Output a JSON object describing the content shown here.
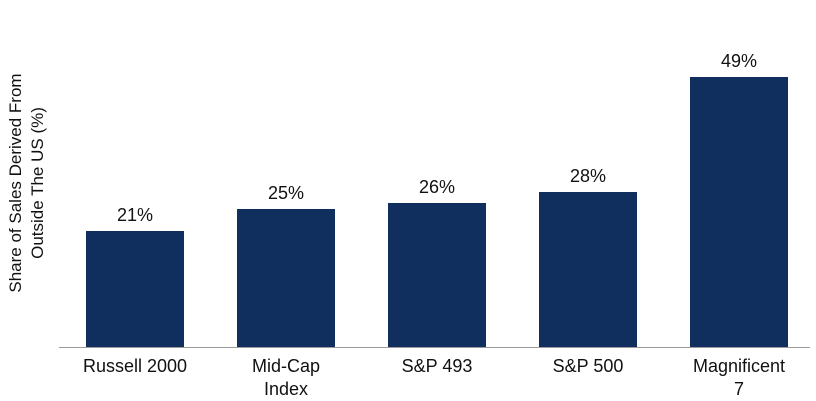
{
  "chart_data": {
    "type": "bar",
    "title": "",
    "categories": [
      "Russell 2000",
      "Mid-Cap Index",
      "S&P 493",
      "S&P 500",
      "Magnificent 7"
    ],
    "category_label_lines": [
      [
        "Russell 2000"
      ],
      [
        "Mid-Cap",
        "Index"
      ],
      [
        "S&P 493"
      ],
      [
        "S&P 500"
      ],
      [
        "Magnificent",
        "7"
      ]
    ],
    "values": [
      21,
      25,
      26,
      28,
      49
    ],
    "value_labels": [
      "21%",
      "25%",
      "26%",
      "28%",
      "49%"
    ],
    "xlabel": "",
    "ylabel": "Share of Sales Derived From Outside The US (%)",
    "ylabel_lines": [
      "Share of Sales Derived From",
      "Outside The US (%)"
    ],
    "ylim": [
      0,
      60
    ],
    "grid": false,
    "legend": false,
    "y_axis_ticks_visible": false,
    "bar_color": "#102f5e",
    "axis_line_color": "#9a9a9a",
    "label_color": "#111111"
  }
}
